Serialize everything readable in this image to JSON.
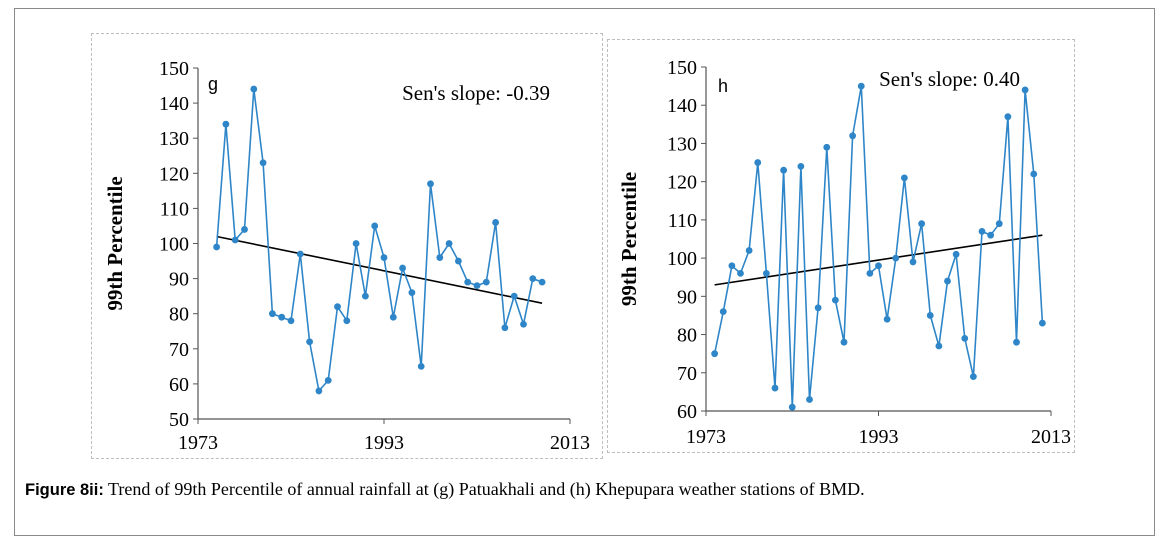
{
  "caption": {
    "label": "Figure 8ii:",
    "text": "Trend of 99th Percentile of annual rainfall at (g) Patuakhali and (h) Khepupara weather stations of BMD."
  },
  "chart_data": [
    {
      "id": "g",
      "type": "line",
      "panel_label": "g",
      "annotation": "Sen's slope: -0.39",
      "xlabel": "",
      "ylabel": "99th Percentile",
      "xlim": [
        1973,
        2013
      ],
      "ylim": [
        50,
        150
      ],
      "xticks": [
        1973,
        1993,
        2013
      ],
      "yticks": [
        50,
        60,
        70,
        80,
        90,
        100,
        110,
        120,
        130,
        140,
        150
      ],
      "grid": false,
      "legend": "none",
      "series_color": "#2e86c8",
      "trend_color": "#000000",
      "x": [
        1975,
        1976,
        1977,
        1978,
        1979,
        1980,
        1981,
        1982,
        1983,
        1984,
        1985,
        1986,
        1987,
        1988,
        1989,
        1990,
        1991,
        1992,
        1993,
        1994,
        1995,
        1996,
        1997,
        1998,
        1999,
        2000,
        2001,
        2002,
        2003,
        2004,
        2005,
        2006,
        2007,
        2008,
        2009,
        2010
      ],
      "values": [
        99,
        134,
        101,
        104,
        144,
        123,
        80,
        79,
        78,
        97,
        72,
        58,
        61,
        82,
        78,
        100,
        85,
        105,
        96,
        79,
        93,
        86,
        65,
        117,
        96,
        100,
        95,
        89,
        88,
        89,
        106,
        76,
        85,
        77,
        90,
        89
      ],
      "trend": {
        "x": [
          1975,
          2010
        ],
        "y": [
          102,
          83
        ]
      }
    },
    {
      "id": "h",
      "type": "line",
      "panel_label": "h",
      "annotation": "Sen's slope: 0.40",
      "xlabel": "",
      "ylabel": "99th Percentile",
      "xlim": [
        1973,
        2013
      ],
      "ylim": [
        60,
        150
      ],
      "xticks": [
        1973,
        1993,
        2013
      ],
      "yticks": [
        60,
        70,
        80,
        90,
        100,
        110,
        120,
        130,
        140,
        150
      ],
      "grid": false,
      "legend": "none",
      "series_color": "#2e86c8",
      "trend_color": "#000000",
      "x": [
        1974,
        1975,
        1976,
        1977,
        1978,
        1979,
        1980,
        1981,
        1982,
        1983,
        1984,
        1985,
        1986,
        1987,
        1988,
        1989,
        1990,
        1991,
        1992,
        1993,
        1994,
        1995,
        1996,
        1997,
        1998,
        1999,
        2000,
        2001,
        2002,
        2003,
        2004,
        2005,
        2006,
        2007,
        2008,
        2009,
        2010,
        2011,
        2012
      ],
      "values": [
        75,
        86,
        98,
        96,
        102,
        125,
        96,
        66,
        123,
        61,
        124,
        63,
        87,
        129,
        89,
        78,
        132,
        145,
        96,
        98,
        84,
        100,
        121,
        99,
        109,
        85,
        77,
        94,
        101,
        79,
        69,
        107,
        106,
        109,
        137,
        78,
        144,
        122,
        83
      ],
      "trend": {
        "x": [
          1974,
          2012
        ],
        "y": [
          93,
          106
        ]
      }
    }
  ]
}
